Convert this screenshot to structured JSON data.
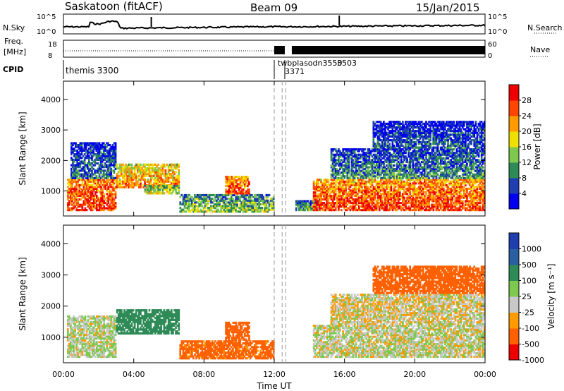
{
  "header": {
    "station": "Saskatoon (fitACF)",
    "beam": "Beam 09",
    "date": "15/Jan/2015"
  },
  "status_panels": {
    "left_labels": [
      "N.Sky",
      "Freq.",
      "[MHz]",
      "CPID"
    ],
    "right_labels": [
      "N.Search",
      "Nave"
    ],
    "sky_ticks": [
      "10^5",
      "10^0"
    ],
    "search_ticks": [
      "10^5",
      "10^0"
    ],
    "freq_ticks": [
      "18",
      "8"
    ],
    "nave_ticks": [
      "60",
      "0"
    ],
    "cpid_labels": [
      "themis 3300",
      "twbplasodn3550",
      "3503",
      "3371"
    ]
  },
  "chart_data": [
    {
      "type": "heatmap",
      "name": "power",
      "ylabel": "Slant Range [km]",
      "xlabel": "",
      "xlim": [
        "00:00",
        "24:00"
      ],
      "ylim": [
        180,
        4600
      ],
      "y_ticks": [
        "1000",
        "2000",
        "3000",
        "4000"
      ],
      "x_ticks": [
        "00:00",
        "04:00",
        "08:00",
        "12:00",
        "16:00",
        "20:00",
        "00:00"
      ],
      "colorbar": {
        "label": "Power [dB]",
        "ticks": [
          "4",
          "8",
          "12",
          "16",
          "20",
          "24",
          "28"
        ],
        "range": [
          0,
          30
        ],
        "colors": [
          "#0000ee",
          "#1f3fb0",
          "#2e8b57",
          "#7ec850",
          "#f0e000",
          "#ff9a00",
          "#ff4500",
          "#ee0000"
        ]
      },
      "echo_regions": [
        {
          "t0": 0.2,
          "t1": 3.0,
          "r0": 350,
          "r1": 1400,
          "level": 27
        },
        {
          "t0": 0.4,
          "t1": 3.0,
          "r0": 1400,
          "r1": 2600,
          "level": 8
        },
        {
          "t0": 3.0,
          "t1": 6.6,
          "r0": 1100,
          "r1": 1900,
          "level": 22
        },
        {
          "t0": 4.6,
          "t1": 6.6,
          "r0": 900,
          "r1": 1200,
          "level": 16
        },
        {
          "t0": 6.6,
          "t1": 12.0,
          "r0": 300,
          "r1": 900,
          "level": 14
        },
        {
          "t0": 9.2,
          "t1": 10.6,
          "r0": 900,
          "r1": 1500,
          "level": 26
        },
        {
          "t0": 13.2,
          "t1": 14.6,
          "r0": 350,
          "r1": 700,
          "level": 12
        },
        {
          "t0": 14.2,
          "t1": 24.0,
          "r0": 350,
          "r1": 1400,
          "level": 26
        },
        {
          "t0": 15.2,
          "t1": 24.0,
          "r0": 1400,
          "r1": 2400,
          "level": 10
        },
        {
          "t0": 17.6,
          "t1": 24.0,
          "r0": 2400,
          "r1": 3300,
          "level": 7
        }
      ]
    },
    {
      "type": "heatmap",
      "name": "velocity",
      "ylabel": "Slant Range [km]",
      "xlabel": "Time UT",
      "xlim": [
        "00:00",
        "24:00"
      ],
      "ylim": [
        180,
        4600
      ],
      "y_ticks": [
        "1000",
        "2000",
        "3000",
        "4000"
      ],
      "x_ticks": [
        "00:00",
        "04:00",
        "08:00",
        "12:00",
        "16:00",
        "20:00",
        "00:00"
      ],
      "colorbar": {
        "label": "Velocity [m s⁻¹]",
        "ticks": [
          "1000",
          "500",
          "100",
          "25",
          "-25",
          "-100",
          "-500",
          "-1000"
        ],
        "colors": [
          "#1f3fb0",
          "#2a5fa0",
          "#2e8b57",
          "#7ec850",
          "#c8c8c8",
          "#ff9a00",
          "#ff6000",
          "#ee0000"
        ]
      },
      "echo_regions": [
        {
          "t0": 0.2,
          "t1": 3.0,
          "r0": 350,
          "r1": 1700,
          "level": 20
        },
        {
          "t0": 3.0,
          "t1": 6.6,
          "r0": 1100,
          "r1": 1900,
          "level": 200
        },
        {
          "t0": 6.6,
          "t1": 12.0,
          "r0": 300,
          "r1": 900,
          "level": -150
        },
        {
          "t0": 9.2,
          "t1": 10.6,
          "r0": 900,
          "r1": 1500,
          "level": -300
        },
        {
          "t0": 14.2,
          "t1": 24.0,
          "r0": 350,
          "r1": 1400,
          "level": 10
        },
        {
          "t0": 15.2,
          "t1": 24.0,
          "r0": 1400,
          "r1": 2400,
          "level": -10
        },
        {
          "t0": 17.6,
          "t1": 24.0,
          "r0": 2400,
          "r1": 3300,
          "level": -200
        }
      ]
    }
  ]
}
